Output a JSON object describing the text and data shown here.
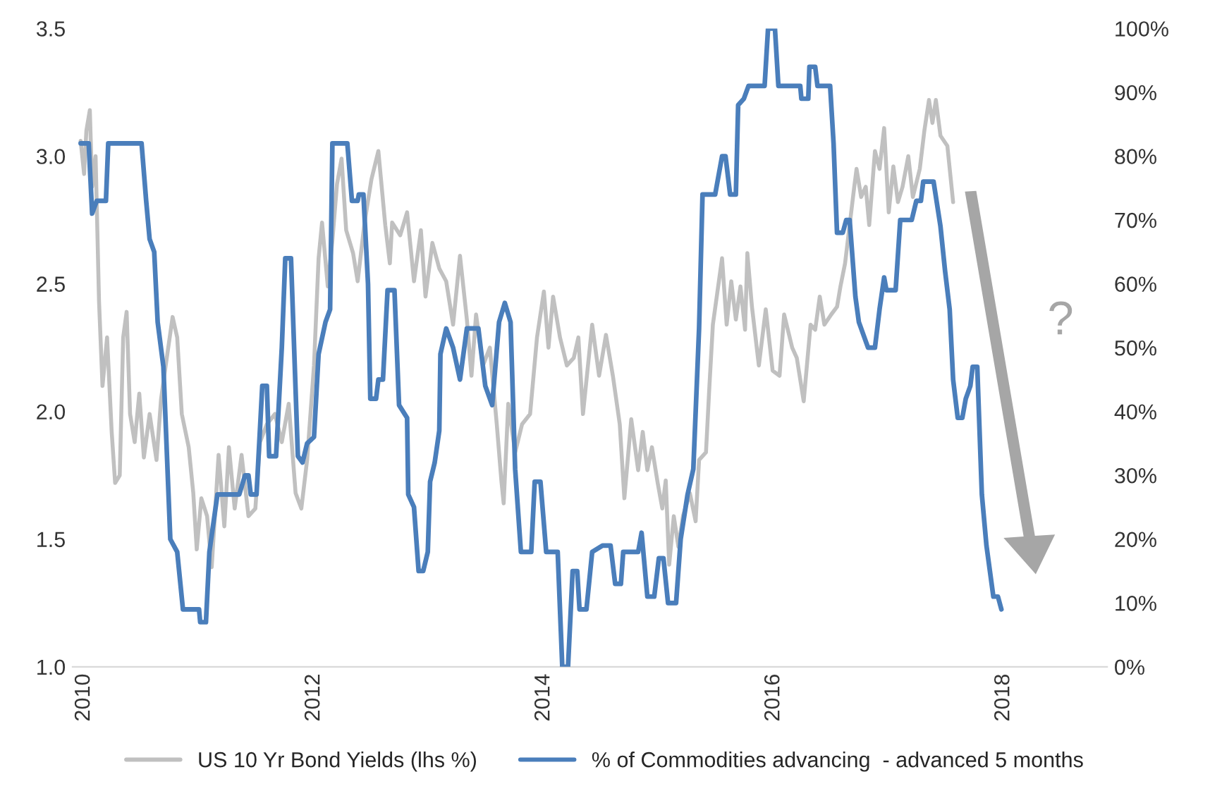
{
  "chart_data": {
    "type": "line",
    "xlim": [
      2009.9,
      2018.9
    ],
    "xticks": [
      2010,
      2012,
      2014,
      2016,
      2018
    ],
    "ylim": [
      1.0,
      3.5
    ],
    "yticks": [
      {
        "value": 1.0,
        "label": "1.0"
      },
      {
        "value": 1.5,
        "label": "1.5"
      },
      {
        "value": 2.0,
        "label": "2.0"
      },
      {
        "value": 2.5,
        "label": "2.5"
      },
      {
        "value": 3.0,
        "label": "3.0"
      },
      {
        "value": 3.5,
        "label": "3.5"
      }
    ],
    "y2lim": [
      0,
      100
    ],
    "y2ticks": [
      {
        "value": 0,
        "label": "0%"
      },
      {
        "value": 10,
        "label": "10%"
      },
      {
        "value": 20,
        "label": "20%"
      },
      {
        "value": 30,
        "label": "30%"
      },
      {
        "value": 40,
        "label": "40%"
      },
      {
        "value": 50,
        "label": "50%"
      },
      {
        "value": 60,
        "label": "60%"
      },
      {
        "value": 70,
        "label": "70%"
      },
      {
        "value": 80,
        "label": "80%"
      },
      {
        "value": 90,
        "label": "90%"
      },
      {
        "value": 100,
        "label": "100%"
      }
    ],
    "grid": false,
    "legend": "bottom",
    "line_style": "solid",
    "marker": "none",
    "annotations": [
      "?"
    ],
    "series": [
      {
        "name": "US 10 Yr Bond Yields (lhs %)",
        "color": "#c0c0c0",
        "x": [
          2009.97,
          2010.0,
          2010.02,
          2010.05,
          2010.07,
          2010.1,
          2010.13,
          2010.16,
          2010.2,
          2010.24,
          2010.27,
          2010.31,
          2010.34,
          2010.37,
          2010.4,
          2010.44,
          2010.48,
          2010.52,
          2010.57,
          2010.63,
          2010.67,
          2010.71,
          2010.77,
          2010.81,
          2010.85,
          2010.91,
          2010.95,
          2010.98,
          2011.02,
          2011.07,
          2011.11,
          2011.17,
          2011.22,
          2011.26,
          2011.31,
          2011.37,
          2011.43,
          2011.49,
          2011.53,
          2011.59,
          2011.66,
          2011.72,
          2011.78,
          2011.84,
          2011.89,
          2011.94,
          2012.0,
          2012.04,
          2012.07,
          2012.12,
          2012.16,
          2012.2,
          2012.24,
          2012.28,
          2012.34,
          2012.38,
          2012.44,
          2012.5,
          2012.56,
          2012.62,
          2012.66,
          2012.68,
          2012.75,
          2012.81,
          2012.87,
          2012.93,
          2012.97,
          2013.03,
          2013.09,
          2013.15,
          2013.21,
          2013.27,
          2013.33,
          2013.37,
          2013.41,
          2013.47,
          2013.53,
          2013.59,
          2013.63,
          2013.65,
          2013.69,
          2013.75,
          2013.81,
          2013.88,
          2013.94,
          2014.0,
          2014.04,
          2014.08,
          2014.14,
          2014.2,
          2014.26,
          2014.3,
          2014.34,
          2014.42,
          2014.48,
          2014.54,
          2014.6,
          2014.66,
          2014.7,
          2014.76,
          2014.82,
          2014.86,
          2014.9,
          2014.94,
          2014.99,
          2015.03,
          2015.06,
          2015.09,
          2015.13,
          2015.17,
          2015.21,
          2015.27,
          2015.32,
          2015.35,
          2015.41,
          2015.44,
          2015.47,
          2015.51,
          2015.55,
          2015.59,
          2015.63,
          2015.67,
          2015.71,
          2015.75,
          2015.77,
          2015.81,
          2015.87,
          2015.93,
          2015.99,
          2016.05,
          2016.09,
          2016.16,
          2016.2,
          2016.26,
          2016.32,
          2016.36,
          2016.4,
          2016.44,
          2016.5,
          2016.55,
          2016.58,
          2016.62,
          2016.66,
          2016.7,
          2016.72,
          2016.76,
          2016.8,
          2016.83,
          2016.88,
          2016.92,
          2016.96,
          2017.0,
          2017.04,
          2017.08,
          2017.12,
          2017.17,
          2017.21,
          2017.27,
          2017.31,
          2017.35,
          2017.38,
          2017.41,
          2017.45,
          2017.51,
          2017.56
        ],
        "values": [
          3.06,
          2.93,
          3.1,
          3.18,
          2.88,
          3.0,
          2.43,
          2.1,
          2.29,
          1.92,
          1.72,
          1.75,
          2.29,
          2.39,
          1.99,
          1.88,
          2.07,
          1.82,
          1.99,
          1.81,
          2.05,
          2.18,
          2.37,
          2.29,
          1.99,
          1.86,
          1.68,
          1.46,
          1.66,
          1.59,
          1.39,
          1.83,
          1.55,
          1.86,
          1.62,
          1.83,
          1.59,
          1.62,
          1.88,
          1.95,
          1.99,
          1.88,
          2.03,
          1.68,
          1.62,
          1.81,
          2.18,
          2.6,
          2.74,
          2.49,
          2.67,
          2.89,
          2.99,
          2.71,
          2.62,
          2.51,
          2.74,
          2.91,
          3.02,
          2.73,
          2.58,
          2.74,
          2.69,
          2.78,
          2.51,
          2.71,
          2.45,
          2.66,
          2.56,
          2.51,
          2.34,
          2.61,
          2.36,
          2.14,
          2.38,
          2.18,
          2.25,
          1.95,
          1.73,
          1.64,
          2.03,
          1.84,
          1.95,
          1.99,
          2.29,
          2.47,
          2.25,
          2.45,
          2.29,
          2.18,
          2.21,
          2.29,
          1.99,
          2.34,
          2.14,
          2.3,
          2.14,
          1.95,
          1.66,
          1.97,
          1.77,
          1.92,
          1.77,
          1.86,
          1.72,
          1.62,
          1.73,
          1.4,
          1.59,
          1.47,
          1.59,
          1.68,
          1.57,
          1.81,
          1.84,
          2.1,
          2.34,
          2.47,
          2.6,
          2.34,
          2.51,
          2.36,
          2.49,
          2.32,
          2.62,
          2.41,
          2.18,
          2.4,
          2.16,
          2.14,
          2.38,
          2.25,
          2.21,
          2.04,
          2.34,
          2.32,
          2.45,
          2.34,
          2.38,
          2.41,
          2.49,
          2.58,
          2.73,
          2.88,
          2.95,
          2.84,
          2.88,
          2.73,
          3.02,
          2.95,
          3.11,
          2.78,
          2.96,
          2.82,
          2.88,
          3.0,
          2.84,
          2.95,
          3.1,
          3.22,
          3.13,
          3.22,
          3.08,
          3.04,
          2.82
        ]
      },
      {
        "name": "% of Commodities advancing  - advanced 5 months",
        "color": "#4a7ebb",
        "axis": "y2",
        "x": [
          2009.97,
          2010.04,
          2010.07,
          2010.11,
          2010.19,
          2010.21,
          2010.5,
          2010.54,
          2010.57,
          2010.61,
          2010.64,
          2010.69,
          2010.75,
          2010.81,
          2010.86,
          2011.0,
          2011.01,
          2011.06,
          2011.09,
          2011.16,
          2011.35,
          2011.4,
          2011.43,
          2011.45,
          2011.5,
          2011.55,
          2011.59,
          2011.61,
          2011.67,
          2011.72,
          2011.75,
          2011.8,
          2011.86,
          2011.9,
          2011.94,
          2012.0,
          2012.04,
          2012.1,
          2012.14,
          2012.16,
          2012.29,
          2012.33,
          2012.38,
          2012.39,
          2012.43,
          2012.47,
          2012.49,
          2012.54,
          2012.56,
          2012.6,
          2012.64,
          2012.7,
          2012.74,
          2012.81,
          2012.82,
          2012.87,
          2012.91,
          2012.95,
          2012.99,
          2013.01,
          2013.05,
          2013.09,
          2013.1,
          2013.15,
          2013.21,
          2013.27,
          2013.33,
          2013.43,
          2013.49,
          2013.55,
          2013.61,
          2013.66,
          2013.71,
          2013.75,
          2013.8,
          2013.89,
          2013.92,
          2013.97,
          2014.02,
          2014.12,
          2014.16,
          2014.21,
          2014.25,
          2014.29,
          2014.31,
          2014.37,
          2014.42,
          2014.51,
          2014.58,
          2014.62,
          2014.67,
          2014.69,
          2014.82,
          2014.85,
          2014.9,
          2014.96,
          2015.0,
          2015.04,
          2015.08,
          2015.15,
          2015.19,
          2015.25,
          2015.3,
          2015.35,
          2015.38,
          2015.49,
          2015.55,
          2015.58,
          2015.62,
          2015.67,
          2015.69,
          2015.74,
          2015.78,
          2015.92,
          2015.95,
          2016.01,
          2016.04,
          2016.23,
          2016.24,
          2016.3,
          2016.31,
          2016.36,
          2016.38,
          2016.49,
          2016.52,
          2016.55,
          2016.6,
          2016.63,
          2016.66,
          2016.71,
          2016.74,
          2016.82,
          2016.88,
          2016.92,
          2016.96,
          2016.98,
          2017.06,
          2017.1,
          2017.2,
          2017.24,
          2017.28,
          2017.3,
          2017.39,
          2017.45,
          2017.49,
          2017.53,
          2017.56,
          2017.6,
          2017.64,
          2017.67,
          2017.71,
          2017.73,
          2017.77,
          2017.81,
          2017.85,
          2017.88,
          2017.91,
          2017.95,
          2017.98
        ],
        "values": [
          82,
          82,
          71,
          73,
          73,
          82,
          82,
          73,
          67,
          65,
          54,
          47,
          20,
          18,
          9,
          9,
          7,
          7,
          18,
          27,
          27,
          30,
          30,
          27,
          27,
          44,
          44,
          33,
          33,
          50,
          64,
          64,
          33,
          32,
          35,
          36,
          49,
          54,
          56,
          82,
          82,
          73,
          73,
          74,
          74,
          60,
          42,
          42,
          45,
          45,
          59,
          59,
          41,
          39,
          27,
          25,
          15,
          15,
          18,
          29,
          32,
          37,
          49,
          53,
          50,
          45,
          53,
          53,
          44,
          41,
          54,
          57,
          54,
          31,
          18,
          18,
          29,
          29,
          18,
          18,
          0,
          0,
          15,
          15,
          9,
          9,
          18,
          19,
          19,
          13,
          13,
          18,
          18,
          21,
          11,
          11,
          17,
          17,
          10,
          10,
          20,
          27,
          31,
          53,
          74,
          74,
          80,
          80,
          74,
          74,
          88,
          89,
          91,
          91,
          100,
          100,
          91,
          91,
          89,
          89,
          94,
          94,
          91,
          91,
          82,
          68,
          68,
          70,
          70,
          58,
          54,
          50,
          50,
          56,
          61,
          59,
          59,
          70,
          70,
          73,
          73,
          76,
          76,
          69,
          62,
          56,
          45,
          39,
          39,
          42,
          44,
          47,
          47,
          27,
          19,
          15,
          11,
          11,
          9
        ]
      }
    ]
  }
}
